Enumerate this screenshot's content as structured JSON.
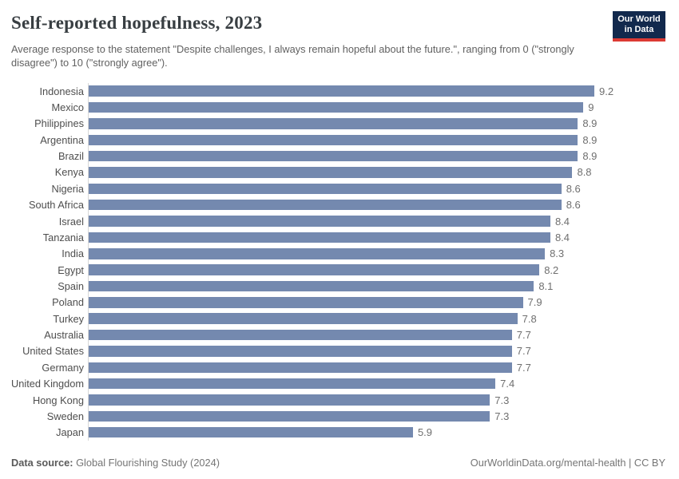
{
  "header": {
    "title": "Self-reported hopefulness, 2023",
    "subtitle": "Average response to the statement \"Despite challenges, I always remain hopeful about the future.\", ranging from 0 (\"strongly disagree\") to 10 (\"strongly agree\").",
    "logo": {
      "line1": "Our World",
      "line2": "in Data"
    }
  },
  "chart_data": {
    "type": "bar",
    "orientation": "horizontal",
    "title": "Self-reported hopefulness, 2023",
    "xlabel": "",
    "ylabel": "",
    "xlim": [
      0,
      9.2
    ],
    "grid": false,
    "bar_color": "#7489af",
    "categories": [
      "Indonesia",
      "Mexico",
      "Philippines",
      "Argentina",
      "Brazil",
      "Kenya",
      "Nigeria",
      "South Africa",
      "Israel",
      "Tanzania",
      "India",
      "Egypt",
      "Spain",
      "Poland",
      "Turkey",
      "Australia",
      "United States",
      "Germany",
      "United Kingdom",
      "Hong Kong",
      "Sweden",
      "Japan"
    ],
    "values": [
      9.2,
      9,
      8.9,
      8.9,
      8.9,
      8.8,
      8.6,
      8.6,
      8.4,
      8.4,
      8.3,
      8.2,
      8.1,
      7.9,
      7.8,
      7.7,
      7.7,
      7.7,
      7.4,
      7.3,
      7.3,
      5.9
    ],
    "value_labels": [
      "9.2",
      "9",
      "8.9",
      "8.9",
      "8.9",
      "8.8",
      "8.6",
      "8.6",
      "8.4",
      "8.4",
      "8.3",
      "8.2",
      "8.1",
      "7.9",
      "7.8",
      "7.7",
      "7.7",
      "7.7",
      "7.4",
      "7.3",
      "7.3",
      "5.9"
    ]
  },
  "footer": {
    "datasource_label": "Data source:",
    "datasource_value": " Global Flourishing Study (2024)",
    "credit": "OurWorldinData.org/mental-health | CC BY"
  },
  "colors": {
    "bar": "#7489af",
    "logo_bg": "#12294d",
    "logo_stripe": "#dc3a34",
    "title_text": "#383e42",
    "subtitle_text": "#616161",
    "axis_line": "#d8d8d8"
  }
}
